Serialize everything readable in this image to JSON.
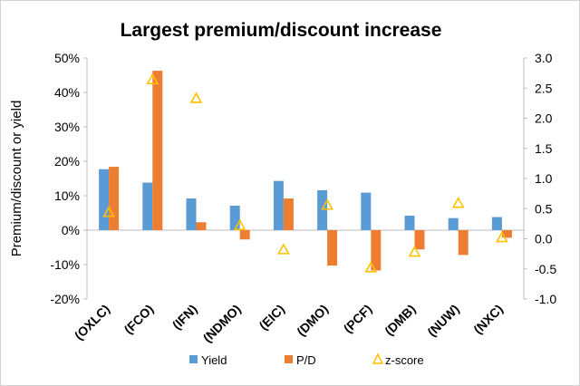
{
  "chart_data": {
    "type": "bar",
    "title": "Largest premium/discount increase",
    "ylabel": "Premium/discount or yield",
    "categories": [
      "(OXLC)",
      "(FCO)",
      "(IFN)",
      "(NDMO)",
      "(EIC)",
      "(DMO)",
      "(PCF)",
      "(DMB)",
      "(NUW)",
      "(NXC)"
    ],
    "series": [
      {
        "name": "Yield",
        "type": "bar",
        "axis": "left",
        "color": "#5b9bd5",
        "values": [
          17.7,
          13.8,
          9.2,
          7.1,
          14.3,
          11.6,
          10.9,
          4.2,
          3.5,
          3.8
        ]
      },
      {
        "name": "P/D",
        "type": "bar",
        "axis": "left",
        "color": "#ed7d31",
        "values": [
          18.4,
          46.3,
          2.3,
          -2.7,
          9.2,
          -10.3,
          -11.7,
          -5.6,
          -7.2,
          -2.2
        ]
      },
      {
        "name": "z-score",
        "type": "scatter",
        "axis": "right",
        "color": "#ffc000",
        "marker": "triangle-open",
        "values": [
          0.44,
          2.64,
          2.33,
          0.22,
          -0.18,
          0.56,
          -0.48,
          -0.22,
          0.59,
          0.02
        ]
      }
    ],
    "y_left": {
      "min": -20,
      "max": 50,
      "step": 10,
      "ticks": [
        "-20%",
        "-10%",
        "0%",
        "10%",
        "20%",
        "30%",
        "40%",
        "50%"
      ]
    },
    "y_right": {
      "min": -1.0,
      "max": 3.0,
      "step": 0.5,
      "ticks": [
        "-1.0",
        "-0.5",
        "0.0",
        "0.5",
        "1.0",
        "1.5",
        "2.0",
        "2.5",
        "3.0"
      ]
    },
    "grid": false,
    "legend": "bottom"
  }
}
